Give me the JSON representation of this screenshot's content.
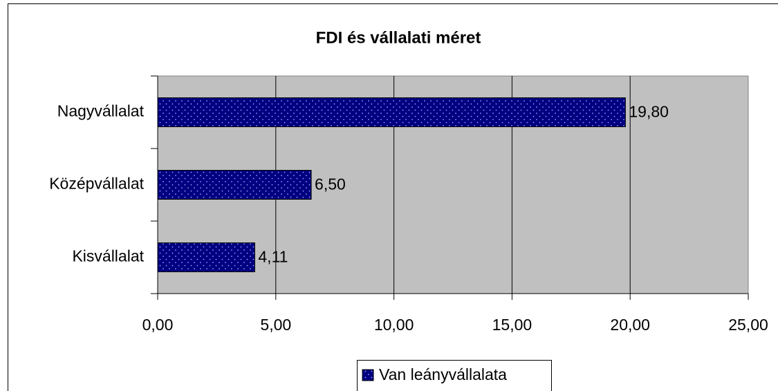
{
  "chart_data": {
    "type": "barh",
    "title": "FDI és vállalati méret",
    "categories": [
      "Nagyvállalat",
      "Középvállalat",
      "Kisvállalat"
    ],
    "series": [
      {
        "name": "Van leányvállalata",
        "color": "#000080",
        "values": [
          19.8,
          6.5,
          4.11
        ],
        "value_labels": [
          "19,80",
          "6,50",
          "4,11"
        ]
      }
    ],
    "xlim": [
      0,
      25
    ],
    "xticks": [
      {
        "value": 0,
        "label": "0,00"
      },
      {
        "value": 5,
        "label": "5,00"
      },
      {
        "value": 10,
        "label": "10,00"
      },
      {
        "value": 15,
        "label": "15,00"
      },
      {
        "value": 20,
        "label": "20,00"
      },
      {
        "value": 25,
        "label": "25,00"
      }
    ],
    "grid": true,
    "legend": "bottom",
    "plot_background": "#c0c0c0"
  }
}
